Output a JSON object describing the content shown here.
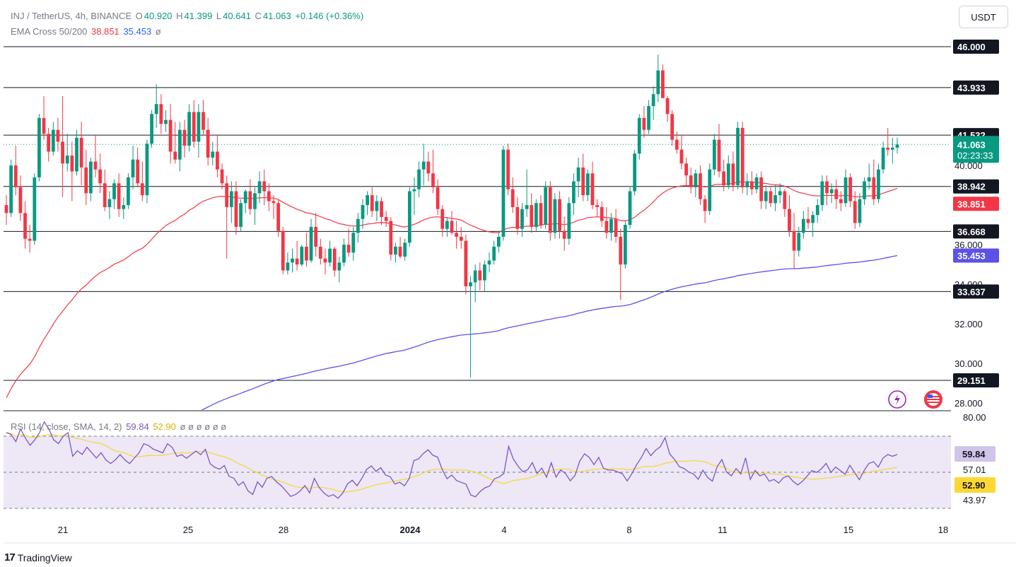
{
  "header": {
    "symbol": "INJ / TetherUS, 4h, BINANCE",
    "open_label": "O",
    "open": "40.920",
    "high_label": "H",
    "high": "41.399",
    "low_label": "L",
    "low": "40.641",
    "close_label": "C",
    "close": "41.063",
    "change": "+0.146 (+0.36%)",
    "ema_label": "EMA Cross 50/200",
    "ema50": "38.851",
    "ema200": "35.453",
    "ema_suffix": "ø"
  },
  "rsi_header": {
    "label": "RSI (14, close, SMA, 14, 2)",
    "rsi": "59.84",
    "sma": "52.90",
    "extras": "ø ø ø ø ø ø"
  },
  "currency": "USDT",
  "brand": "TradingView",
  "colors": {
    "up": "#089981",
    "down": "#f23645",
    "ema50": "#f23645",
    "ema200": "#5b52e8",
    "rsi": "#7e57c2",
    "rsi_sma": "#f5d942",
    "rsi_band": "#ede7f6"
  },
  "chart_data": {
    "type": "candlestick",
    "price_axis": {
      "range": [
        27.3,
        47.5
      ],
      "ticks": [
        "28.000",
        "30.000",
        "32.000",
        "34.000",
        "36.000",
        "40.000"
      ]
    },
    "horizontal_levels": [
      "46.000",
      "43.933",
      "41.532",
      "38.942",
      "36.668",
      "33.637",
      "29.151"
    ],
    "current_price": {
      "value": "41.063",
      "countdown": "02:23:33"
    },
    "ema50_value": "38.851",
    "ema200_value": "35.453",
    "x_labels": [
      "21",
      "25",
      "28",
      "2024",
      "4",
      "8",
      "11",
      "15",
      "18"
    ],
    "rsi_axis": {
      "range": [
        35,
        85
      ],
      "ticks": [
        "80.00",
        "57.01",
        "43.97"
      ],
      "bands": [
        70,
        30
      ]
    },
    "rsi_value": "59.84",
    "rsi_sma_value": "52.90",
    "ohlc": [
      [
        38.0,
        38.5,
        37.0,
        37.6
      ],
      [
        37.6,
        40.3,
        37.4,
        40.0
      ],
      [
        40.0,
        41.0,
        38.5,
        38.9
      ],
      [
        38.9,
        39.5,
        37.2,
        37.6
      ],
      [
        37.6,
        38.2,
        35.8,
        36.3
      ],
      [
        36.3,
        37.0,
        35.6,
        36.2
      ],
      [
        36.2,
        39.6,
        36.0,
        39.4
      ],
      [
        39.4,
        42.6,
        39.2,
        42.4
      ],
      [
        42.4,
        43.5,
        41.3,
        41.6
      ],
      [
        41.6,
        41.9,
        40.2,
        40.7
      ],
      [
        40.7,
        42.2,
        40.5,
        41.8
      ],
      [
        41.8,
        42.4,
        40.7,
        41.2
      ],
      [
        41.2,
        43.5,
        38.4,
        40.1
      ],
      [
        40.1,
        41.6,
        39.7,
        40.5
      ],
      [
        40.5,
        41.2,
        38.2,
        39.7
      ],
      [
        39.7,
        41.8,
        39.5,
        41.4
      ],
      [
        41.4,
        42.2,
        39.0,
        39.9
      ],
      [
        39.9,
        40.8,
        38.0,
        38.6
      ],
      [
        38.6,
        40.4,
        38.2,
        40.2
      ],
      [
        40.2,
        41.5,
        39.4,
        39.8
      ],
      [
        39.8,
        40.6,
        38.6,
        39.1
      ],
      [
        39.1,
        39.8,
        37.7,
        37.9
      ],
      [
        37.9,
        38.7,
        37.3,
        38.3
      ],
      [
        38.3,
        39.3,
        37.8,
        39.1
      ],
      [
        39.1,
        39.6,
        37.4,
        37.8
      ],
      [
        37.8,
        38.4,
        37.3,
        38.0
      ],
      [
        38.0,
        39.6,
        37.8,
        39.4
      ],
      [
        39.4,
        41.0,
        38.8,
        40.3
      ],
      [
        40.3,
        40.9,
        38.9,
        39.1
      ],
      [
        39.1,
        40.2,
        38.2,
        38.5
      ],
      [
        38.5,
        41.3,
        38.1,
        41.1
      ],
      [
        41.1,
        42.8,
        40.9,
        42.6
      ],
      [
        42.6,
        44.1,
        41.9,
        43.1
      ],
      [
        43.1,
        43.6,
        41.6,
        42.1
      ],
      [
        42.1,
        42.8,
        41.7,
        42.3
      ],
      [
        42.3,
        43.1,
        40.1,
        40.7
      ],
      [
        40.7,
        42.2,
        40.1,
        40.3
      ],
      [
        40.3,
        42.2,
        39.7,
        41.8
      ],
      [
        41.8,
        42.3,
        40.4,
        41.0
      ],
      [
        41.0,
        43.1,
        40.7,
        42.7
      ],
      [
        42.7,
        43.3,
        40.9,
        41.2
      ],
      [
        41.2,
        43.1,
        40.4,
        42.7
      ],
      [
        42.7,
        43.3,
        41.5,
        41.8
      ],
      [
        41.8,
        42.4,
        40.0,
        40.4
      ],
      [
        40.4,
        41.2,
        40.0,
        40.7
      ],
      [
        40.7,
        41.5,
        39.4,
        39.8
      ],
      [
        39.8,
        40.1,
        38.8,
        39.1
      ],
      [
        39.1,
        39.5,
        35.3,
        37.9
      ],
      [
        37.9,
        39.2,
        37.1,
        38.7
      ],
      [
        38.7,
        39.2,
        36.5,
        36.9
      ],
      [
        36.9,
        38.3,
        36.7,
        38.1
      ],
      [
        38.1,
        38.8,
        37.6,
        38.7
      ],
      [
        38.7,
        39.3,
        37.5,
        37.8
      ],
      [
        37.8,
        38.9,
        37.0,
        38.6
      ],
      [
        38.6,
        39.7,
        38.1,
        39.2
      ],
      [
        39.2,
        39.8,
        38.0,
        38.7
      ],
      [
        38.7,
        39.1,
        37.7,
        38.2
      ],
      [
        38.2,
        38.5,
        37.3,
        38.1
      ],
      [
        38.1,
        38.3,
        36.4,
        36.7
      ],
      [
        36.7,
        36.9,
        34.5,
        34.7
      ],
      [
        34.7,
        35.6,
        34.5,
        35.1
      ],
      [
        35.1,
        35.8,
        34.6,
        35.3
      ],
      [
        35.3,
        36.2,
        34.7,
        35.0
      ],
      [
        35.0,
        36.0,
        34.9,
        35.9
      ],
      [
        35.9,
        36.6,
        34.9,
        35.2
      ],
      [
        35.2,
        37.3,
        35.1,
        36.9
      ],
      [
        36.9,
        37.6,
        35.4,
        35.9
      ],
      [
        35.9,
        36.3,
        35.0,
        35.3
      ],
      [
        35.3,
        35.8,
        34.5,
        35.1
      ],
      [
        35.1,
        36.2,
        34.9,
        35.8
      ],
      [
        35.8,
        35.9,
        34.4,
        34.7
      ],
      [
        34.7,
        35.4,
        34.1,
        35.1
      ],
      [
        35.1,
        36.3,
        34.9,
        36.0
      ],
      [
        36.0,
        36.8,
        35.4,
        35.6
      ],
      [
        35.6,
        36.9,
        35.2,
        36.6
      ],
      [
        36.6,
        37.6,
        36.1,
        37.3
      ],
      [
        37.3,
        38.3,
        36.8,
        38.0
      ],
      [
        38.0,
        38.7,
        37.5,
        38.5
      ],
      [
        38.5,
        38.9,
        37.4,
        37.7
      ],
      [
        37.7,
        38.5,
        37.2,
        38.2
      ],
      [
        38.2,
        38.4,
        37.0,
        37.4
      ],
      [
        37.4,
        37.7,
        36.9,
        37.2
      ],
      [
        37.2,
        37.4,
        35.2,
        35.5
      ],
      [
        35.5,
        36.1,
        35.1,
        35.9
      ],
      [
        35.9,
        36.4,
        35.3,
        35.4
      ],
      [
        35.4,
        36.3,
        35.2,
        36.1
      ],
      [
        36.1,
        38.9,
        35.9,
        38.7
      ],
      [
        38.7,
        39.4,
        37.5,
        38.8
      ],
      [
        38.8,
        40.2,
        38.4,
        39.8
      ],
      [
        39.8,
        41.1,
        39.0,
        40.2
      ],
      [
        40.2,
        40.7,
        39.2,
        39.6
      ],
      [
        39.6,
        40.8,
        38.6,
        38.9
      ],
      [
        38.9,
        39.3,
        37.5,
        37.8
      ],
      [
        37.8,
        38.0,
        36.4,
        36.8
      ],
      [
        36.8,
        37.4,
        36.4,
        37.2
      ],
      [
        37.2,
        37.7,
        36.5,
        36.6
      ],
      [
        36.6,
        37.2,
        35.8,
        36.4
      ],
      [
        36.4,
        36.9,
        35.8,
        36.2
      ],
      [
        36.2,
        36.5,
        33.5,
        33.9
      ],
      [
        33.9,
        34.4,
        29.3,
        34.1
      ],
      [
        34.1,
        35.0,
        33.1,
        34.7
      ],
      [
        34.7,
        35.1,
        33.7,
        34.2
      ],
      [
        34.2,
        35.2,
        33.6,
        35.0
      ],
      [
        35.0,
        35.6,
        34.6,
        35.2
      ],
      [
        35.2,
        36.2,
        35.0,
        35.9
      ],
      [
        35.9,
        36.7,
        35.6,
        36.4
      ],
      [
        36.4,
        41.0,
        36.2,
        40.8
      ],
      [
        40.8,
        41.1,
        38.5,
        38.8
      ],
      [
        38.8,
        39.4,
        37.6,
        37.9
      ],
      [
        37.9,
        38.4,
        36.5,
        36.8
      ],
      [
        36.8,
        38.1,
        36.4,
        37.8
      ],
      [
        37.8,
        39.8,
        37.4,
        38.0
      ],
      [
        38.0,
        38.6,
        36.6,
        36.9
      ],
      [
        36.9,
        38.3,
        36.7,
        38.1
      ],
      [
        38.1,
        38.5,
        36.8,
        37.0
      ],
      [
        37.0,
        39.2,
        36.8,
        38.9
      ],
      [
        38.9,
        39.2,
        36.2,
        36.6
      ],
      [
        36.6,
        38.6,
        36.3,
        38.3
      ],
      [
        38.3,
        38.7,
        36.3,
        36.7
      ],
      [
        36.7,
        37.4,
        35.7,
        36.3
      ],
      [
        36.3,
        38.4,
        36.0,
        38.1
      ],
      [
        38.1,
        39.6,
        37.5,
        39.2
      ],
      [
        39.2,
        40.4,
        38.4,
        39.9
      ],
      [
        39.9,
        40.6,
        38.2,
        38.5
      ],
      [
        38.5,
        39.8,
        38.2,
        39.6
      ],
      [
        39.6,
        40.2,
        37.8,
        38.0
      ],
      [
        38.0,
        38.3,
        37.4,
        37.9
      ],
      [
        37.9,
        38.2,
        36.9,
        37.2
      ],
      [
        37.2,
        37.9,
        36.3,
        36.6
      ],
      [
        36.6,
        37.6,
        36.2,
        37.3
      ],
      [
        37.3,
        37.8,
        36.1,
        36.4
      ],
      [
        36.4,
        36.8,
        33.2,
        35.0
      ],
      [
        35.0,
        37.2,
        34.8,
        37.0
      ],
      [
        37.0,
        38.9,
        36.8,
        38.7
      ],
      [
        38.7,
        40.8,
        38.5,
        40.6
      ],
      [
        40.6,
        42.6,
        40.3,
        42.4
      ],
      [
        42.4,
        43.0,
        41.4,
        41.8
      ],
      [
        41.8,
        43.3,
        41.6,
        43.0
      ],
      [
        43.0,
        44.0,
        42.3,
        43.6
      ],
      [
        43.6,
        45.6,
        43.2,
        44.8
      ],
      [
        44.8,
        45.1,
        43.5,
        43.4
      ],
      [
        43.4,
        43.5,
        42.2,
        42.6
      ],
      [
        42.6,
        42.8,
        41.0,
        41.3
      ],
      [
        41.3,
        41.7,
        40.6,
        40.8
      ],
      [
        40.8,
        41.5,
        39.8,
        40.1
      ],
      [
        40.1,
        40.4,
        39.0,
        39.5
      ],
      [
        39.5,
        39.9,
        38.6,
        38.9
      ],
      [
        38.9,
        39.8,
        38.4,
        39.6
      ],
      [
        39.6,
        40.0,
        38.0,
        38.3
      ],
      [
        38.3,
        38.5,
        37.1,
        37.7
      ],
      [
        37.7,
        40.1,
        37.5,
        39.8
      ],
      [
        39.8,
        41.6,
        39.5,
        41.3
      ],
      [
        41.3,
        42.1,
        39.4,
        39.7
      ],
      [
        39.7,
        40.3,
        38.7,
        39.0
      ],
      [
        39.0,
        40.5,
        38.8,
        40.1
      ],
      [
        40.1,
        40.7,
        38.7,
        39.0
      ],
      [
        39.0,
        42.2,
        38.8,
        41.9
      ],
      [
        41.9,
        42.2,
        38.6,
        38.9
      ],
      [
        38.9,
        39.6,
        38.5,
        39.2
      ],
      [
        39.2,
        39.7,
        38.5,
        38.8
      ],
      [
        38.8,
        39.6,
        38.6,
        39.4
      ],
      [
        39.4,
        39.7,
        37.8,
        38.2
      ],
      [
        38.2,
        39.0,
        37.8,
        38.7
      ],
      [
        38.7,
        38.9,
        37.9,
        38.1
      ],
      [
        38.1,
        39.0,
        37.7,
        38.5
      ],
      [
        38.5,
        39.1,
        38.1,
        38.7
      ],
      [
        38.7,
        38.8,
        37.4,
        37.8
      ],
      [
        37.8,
        38.5,
        36.4,
        36.7
      ],
      [
        36.7,
        37.6,
        34.8,
        35.7
      ],
      [
        35.7,
        36.9,
        35.4,
        36.6
      ],
      [
        36.6,
        37.7,
        36.3,
        37.3
      ],
      [
        37.3,
        37.9,
        36.8,
        37.1
      ],
      [
        37.1,
        37.7,
        36.4,
        37.5
      ],
      [
        37.5,
        38.3,
        37.1,
        38.0
      ],
      [
        38.0,
        39.5,
        37.7,
        39.2
      ],
      [
        39.2,
        39.5,
        38.0,
        38.6
      ],
      [
        38.6,
        39.1,
        38.1,
        38.8
      ],
      [
        38.8,
        39.3,
        37.8,
        38.3
      ],
      [
        38.3,
        38.7,
        37.7,
        38.1
      ],
      [
        38.1,
        39.8,
        37.9,
        39.4
      ],
      [
        39.4,
        39.6,
        37.9,
        38.2
      ],
      [
        38.2,
        38.7,
        36.8,
        37.1
      ],
      [
        37.1,
        38.6,
        36.9,
        38.3
      ],
      [
        38.3,
        39.4,
        38.0,
        39.2
      ],
      [
        39.2,
        40.1,
        38.8,
        39.4
      ],
      [
        39.4,
        40.3,
        38.0,
        38.3
      ],
      [
        38.3,
        40.1,
        38.1,
        39.8
      ],
      [
        39.8,
        41.2,
        39.6,
        40.9
      ],
      [
        40.9,
        41.9,
        40.5,
        40.8
      ],
      [
        40.8,
        41.4,
        40.1,
        40.9
      ],
      [
        40.9,
        41.4,
        40.6,
        41.06
      ]
    ],
    "rsi_values": [
      72,
      71,
      67,
      74,
      69,
      65,
      68,
      72,
      78,
      74,
      68,
      66,
      70,
      72,
      59,
      62,
      60,
      64,
      61,
      58,
      61,
      57,
      55,
      57,
      60,
      57,
      55,
      58,
      61,
      66,
      65,
      63,
      62,
      61,
      66,
      64,
      59,
      60,
      58,
      60,
      62,
      60,
      63,
      55,
      53,
      52,
      54,
      48,
      47,
      43,
      45,
      40,
      38,
      45,
      42,
      47,
      48,
      45,
      43,
      40,
      37,
      38,
      40,
      43,
      39,
      47,
      42,
      39,
      37,
      38,
      36,
      39,
      44,
      46,
      43,
      47,
      52,
      54,
      51,
      53,
      49,
      48,
      44,
      45,
      43,
      47,
      57,
      58,
      61,
      63,
      60,
      59,
      52,
      47,
      49,
      46,
      45,
      44,
      38,
      37,
      40,
      42,
      43,
      47,
      48,
      50,
      65,
      58,
      54,
      51,
      52,
      56,
      50,
      53,
      48,
      56,
      48,
      52,
      50,
      46,
      49,
      57,
      61,
      59,
      55,
      59,
      53,
      52,
      52,
      51,
      50,
      46,
      50,
      55,
      59,
      64,
      60,
      63,
      65,
      70,
      61,
      58,
      54,
      53,
      51,
      50,
      47,
      52,
      48,
      46,
      54,
      58,
      51,
      49,
      53,
      50,
      59,
      47,
      52,
      49,
      50,
      46,
      47,
      45,
      48,
      49,
      46,
      44,
      46,
      49,
      52,
      51,
      53,
      56,
      51,
      54,
      52,
      50,
      55,
      51,
      47,
      52,
      56,
      57,
      54,
      59,
      61,
      60,
      61
    ]
  }
}
